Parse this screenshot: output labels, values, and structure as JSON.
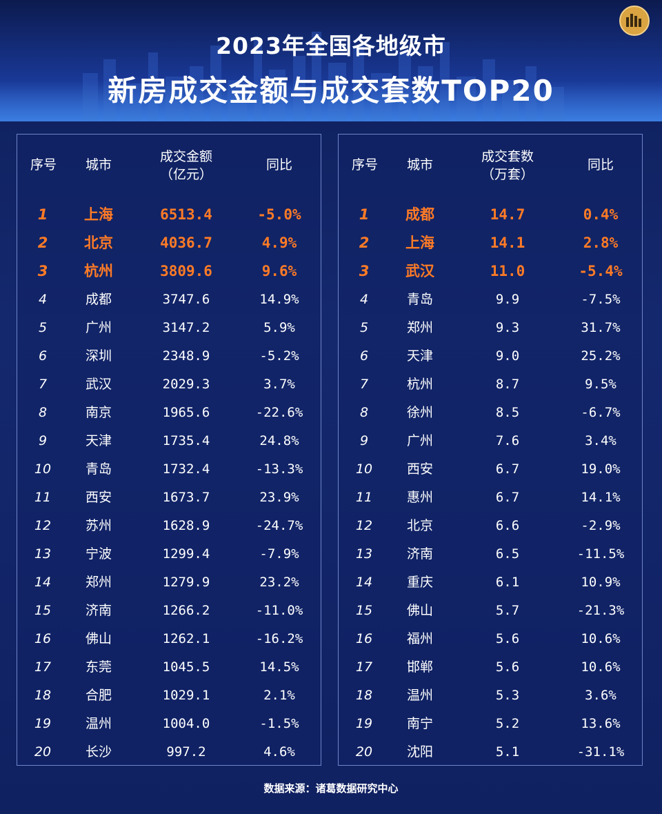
{
  "title_line1": "2023年全国各地级市",
  "title_line2": "新房成交金额与成交套数TOP20",
  "source": "数据来源：诸葛数据研究中心",
  "colors": {
    "highlight": "#ff7b26",
    "background": "#14286e",
    "text": "#ffffff"
  },
  "left_table": {
    "headers": {
      "rank": "序号",
      "city": "城市",
      "value_line1": "成交金额",
      "value_line2": "（亿元）",
      "yoy": "同比"
    },
    "rows": [
      {
        "rank": "1",
        "city": "上海",
        "value": "6513.4",
        "yoy": "-5.0%"
      },
      {
        "rank": "2",
        "city": "北京",
        "value": "4036.7",
        "yoy": "4.9%"
      },
      {
        "rank": "3",
        "city": "杭州",
        "value": "3809.6",
        "yoy": "9.6%"
      },
      {
        "rank": "4",
        "city": "成都",
        "value": "3747.6",
        "yoy": "14.9%"
      },
      {
        "rank": "5",
        "city": "广州",
        "value": "3147.2",
        "yoy": "5.9%"
      },
      {
        "rank": "6",
        "city": "深圳",
        "value": "2348.9",
        "yoy": "-5.2%"
      },
      {
        "rank": "7",
        "city": "武汉",
        "value": "2029.3",
        "yoy": "3.7%"
      },
      {
        "rank": "8",
        "city": "南京",
        "value": "1965.6",
        "yoy": "-22.6%"
      },
      {
        "rank": "9",
        "city": "天津",
        "value": "1735.4",
        "yoy": "24.8%"
      },
      {
        "rank": "10",
        "city": "青岛",
        "value": "1732.4",
        "yoy": "-13.3%"
      },
      {
        "rank": "11",
        "city": "西安",
        "value": "1673.7",
        "yoy": "23.9%"
      },
      {
        "rank": "12",
        "city": "苏州",
        "value": "1628.9",
        "yoy": "-24.7%"
      },
      {
        "rank": "13",
        "city": "宁波",
        "value": "1299.4",
        "yoy": "-7.9%"
      },
      {
        "rank": "14",
        "city": "郑州",
        "value": "1279.9",
        "yoy": "23.2%"
      },
      {
        "rank": "15",
        "city": "济南",
        "value": "1266.2",
        "yoy": "-11.0%"
      },
      {
        "rank": "16",
        "city": "佛山",
        "value": "1262.1",
        "yoy": "-16.2%"
      },
      {
        "rank": "17",
        "city": "东莞",
        "value": "1045.5",
        "yoy": "14.5%"
      },
      {
        "rank": "18",
        "city": "合肥",
        "value": "1029.1",
        "yoy": "2.1%"
      },
      {
        "rank": "19",
        "city": "温州",
        "value": "1004.0",
        "yoy": "-1.5%"
      },
      {
        "rank": "20",
        "city": "长沙",
        "value": "997.2",
        "yoy": "4.6%"
      }
    ]
  },
  "right_table": {
    "headers": {
      "rank": "序号",
      "city": "城市",
      "value_line1": "成交套数",
      "value_line2": "（万套）",
      "yoy": "同比"
    },
    "rows": [
      {
        "rank": "1",
        "city": "成都",
        "value": "14.7",
        "yoy": "0.4%"
      },
      {
        "rank": "2",
        "city": "上海",
        "value": "14.1",
        "yoy": "2.8%"
      },
      {
        "rank": "3",
        "city": "武汉",
        "value": "11.0",
        "yoy": "-5.4%"
      },
      {
        "rank": "4",
        "city": "青岛",
        "value": "9.9",
        "yoy": "-7.5%"
      },
      {
        "rank": "5",
        "city": "郑州",
        "value": "9.3",
        "yoy": "31.7%"
      },
      {
        "rank": "6",
        "city": "天津",
        "value": "9.0",
        "yoy": "25.2%"
      },
      {
        "rank": "7",
        "city": "杭州",
        "value": "8.7",
        "yoy": "9.5%"
      },
      {
        "rank": "8",
        "city": "徐州",
        "value": "8.5",
        "yoy": "-6.7%"
      },
      {
        "rank": "9",
        "city": "广州",
        "value": "7.6",
        "yoy": "3.4%"
      },
      {
        "rank": "10",
        "city": "西安",
        "value": "6.7",
        "yoy": "19.0%"
      },
      {
        "rank": "11",
        "city": "惠州",
        "value": "6.7",
        "yoy": "14.1%"
      },
      {
        "rank": "12",
        "city": "北京",
        "value": "6.6",
        "yoy": "-2.9%"
      },
      {
        "rank": "13",
        "city": "济南",
        "value": "6.5",
        "yoy": "-11.5%"
      },
      {
        "rank": "14",
        "city": "重庆",
        "value": "6.1",
        "yoy": "10.9%"
      },
      {
        "rank": "15",
        "city": "佛山",
        "value": "5.7",
        "yoy": "-21.3%"
      },
      {
        "rank": "16",
        "city": "福州",
        "value": "5.6",
        "yoy": "10.6%"
      },
      {
        "rank": "17",
        "city": "邯郸",
        "value": "5.6",
        "yoy": "10.6%"
      },
      {
        "rank": "18",
        "city": "温州",
        "value": "5.3",
        "yoy": "3.6%"
      },
      {
        "rank": "19",
        "city": "南宁",
        "value": "5.2",
        "yoy": "13.6%"
      },
      {
        "rank": "20",
        "city": "沈阳",
        "value": "5.1",
        "yoy": "-31.1%"
      }
    ]
  }
}
